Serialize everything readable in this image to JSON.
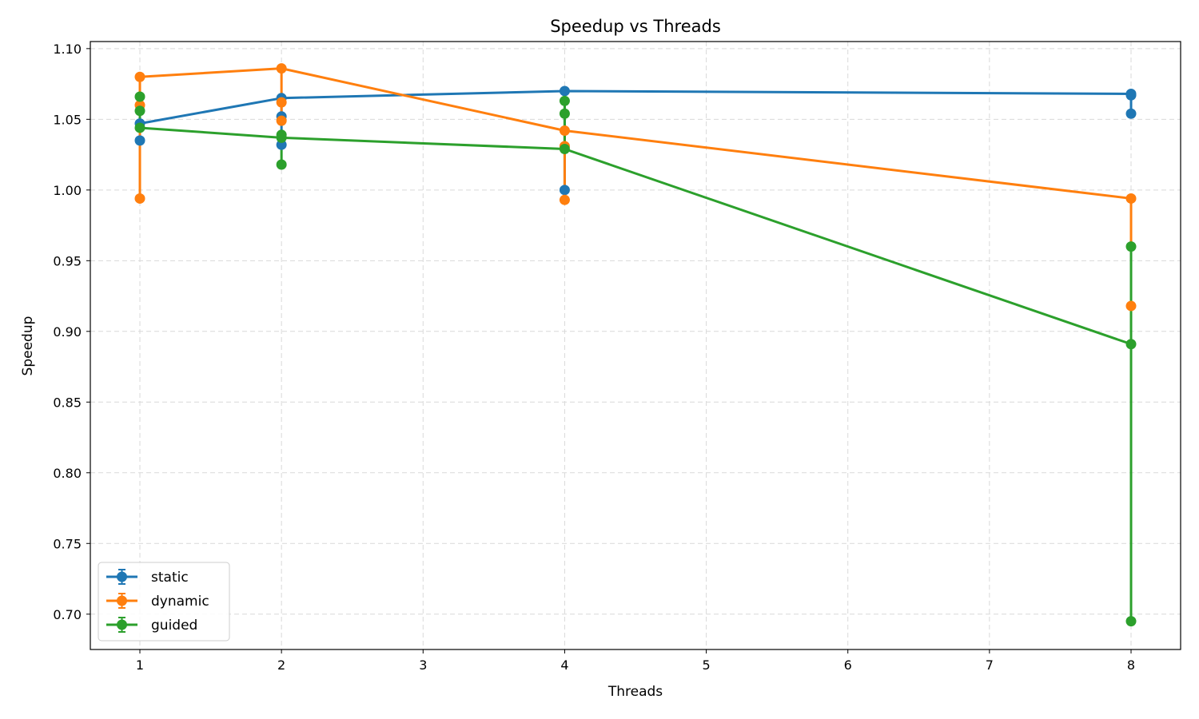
{
  "chart_data": {
    "type": "line",
    "title": "Speedup vs Threads",
    "xlabel": "Threads",
    "ylabel": "Speedup",
    "xlim": [
      0.65,
      8.35
    ],
    "ylim": [
      0.675,
      1.105
    ],
    "xticks": [
      "1",
      "2",
      "3",
      "4",
      "5",
      "6",
      "7",
      "8"
    ],
    "yticks": [
      "0.70",
      "0.75",
      "0.80",
      "0.85",
      "0.90",
      "0.95",
      "1.00",
      "1.05",
      "1.10"
    ],
    "grid": true,
    "legend_position": "bottom-left",
    "x": [
      1,
      2,
      4,
      8
    ],
    "series": [
      {
        "name": "static",
        "color": "#1f77b4",
        "values": [
          1.047,
          1.065,
          1.07,
          1.068
        ],
        "error_low": [
          1.035,
          1.032,
          1.0,
          1.054
        ],
        "error_high": [
          1.047,
          1.065,
          1.07,
          1.068
        ],
        "extra_points": [
          [
            1,
            1.035
          ],
          [
            2,
            1.052
          ],
          [
            2,
            1.032
          ],
          [
            4,
            1.0
          ],
          [
            8,
            1.054
          ],
          [
            8,
            1.067
          ]
        ]
      },
      {
        "name": "dynamic",
        "color": "#ff7f0e",
        "values": [
          1.08,
          1.086,
          1.042,
          0.994
        ],
        "error_low": [
          0.994,
          1.049,
          0.993,
          0.918
        ],
        "error_high": [
          1.08,
          1.086,
          1.042,
          0.994
        ],
        "extra_points": [
          [
            1,
            1.06
          ],
          [
            1,
            0.994
          ],
          [
            2,
            1.062
          ],
          [
            2,
            1.049
          ],
          [
            4,
            1.031
          ],
          [
            4,
            0.993
          ],
          [
            8,
            0.918
          ]
        ]
      },
      {
        "name": "guided",
        "color": "#2ca02c",
        "values": [
          1.044,
          1.037,
          1.029,
          0.891
        ],
        "error_low": [
          1.044,
          1.018,
          1.029,
          0.695
        ],
        "error_high": [
          1.066,
          1.039,
          1.063,
          0.96
        ],
        "extra_points": [
          [
            1,
            1.066
          ],
          [
            1,
            1.056
          ],
          [
            2,
            1.039
          ],
          [
            2,
            1.018
          ],
          [
            4,
            1.063
          ],
          [
            4,
            1.054
          ],
          [
            8,
            0.96
          ],
          [
            8,
            0.695
          ]
        ]
      }
    ]
  }
}
